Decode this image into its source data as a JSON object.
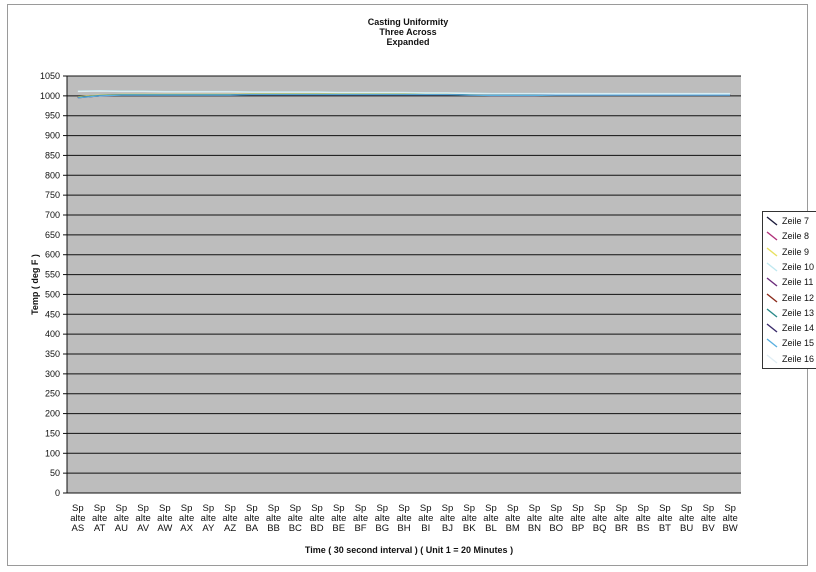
{
  "chart_data": {
    "type": "line",
    "title_lines": [
      "Casting Uniformity",
      "Three  Across",
      "Expanded"
    ],
    "xlabel": "Time ( 30 second interval ) ( Unit 1 = 20 Minutes )",
    "ylabel": "Temp ( deg F )",
    "ylim": [
      0,
      1050
    ],
    "yticks": [
      0,
      50,
      100,
      150,
      200,
      250,
      300,
      350,
      400,
      450,
      500,
      550,
      600,
      650,
      700,
      750,
      800,
      850,
      900,
      950,
      1000,
      1050
    ],
    "grid": true,
    "legend_position": "right",
    "categories": [
      {
        "line1": "Sp",
        "line2": "alte",
        "line3": "AS"
      },
      {
        "line1": "Sp",
        "line2": "alte",
        "line3": "AT"
      },
      {
        "line1": "Sp",
        "line2": "alte",
        "line3": "AU"
      },
      {
        "line1": "Sp",
        "line2": "alte",
        "line3": "AV"
      },
      {
        "line1": "Sp",
        "line2": "alte",
        "line3": "AW"
      },
      {
        "line1": "Sp",
        "line2": "alte",
        "line3": "AX"
      },
      {
        "line1": "Sp",
        "line2": "alte",
        "line3": "AY"
      },
      {
        "line1": "Sp",
        "line2": "alte",
        "line3": "AZ"
      },
      {
        "line1": "Sp",
        "line2": "alte",
        "line3": "BA"
      },
      {
        "line1": "Sp",
        "line2": "alte",
        "line3": "BB"
      },
      {
        "line1": "Sp",
        "line2": "alte",
        "line3": "BC"
      },
      {
        "line1": "Sp",
        "line2": "alte",
        "line3": "BD"
      },
      {
        "line1": "Sp",
        "line2": "alte",
        "line3": "BE"
      },
      {
        "line1": "Sp",
        "line2": "alte",
        "line3": "BF"
      },
      {
        "line1": "Sp",
        "line2": "alte",
        "line3": "BG"
      },
      {
        "line1": "Sp",
        "line2": "alte",
        "line3": "BH"
      },
      {
        "line1": "Sp",
        "line2": "alte",
        "line3": "BI"
      },
      {
        "line1": "Sp",
        "line2": "alte",
        "line3": "BJ"
      },
      {
        "line1": "Sp",
        "line2": "alte",
        "line3": "BK"
      },
      {
        "line1": "Sp",
        "line2": "alte",
        "line3": "BL"
      },
      {
        "line1": "Sp",
        "line2": "alte",
        "line3": "BM"
      },
      {
        "line1": "Sp",
        "line2": "alte",
        "line3": "BN"
      },
      {
        "line1": "Sp",
        "line2": "alte",
        "line3": "BO"
      },
      {
        "line1": "Sp",
        "line2": "alte",
        "line3": "BP"
      },
      {
        "line1": "Sp",
        "line2": "alte",
        "line3": "BQ"
      },
      {
        "line1": "Sp",
        "line2": "alte",
        "line3": "BR"
      },
      {
        "line1": "Sp",
        "line2": "alte",
        "line3": "BS"
      },
      {
        "line1": "Sp",
        "line2": "alte",
        "line3": "BT"
      },
      {
        "line1": "Sp",
        "line2": "alte",
        "line3": "BU"
      },
      {
        "line1": "Sp",
        "line2": "alte",
        "line3": "BV"
      },
      {
        "line1": "Sp",
        "line2": "alte",
        "line3": "BW"
      }
    ],
    "series": [
      {
        "name": "Zeile 7",
        "color": "#1a1a3a",
        "values": [
          996,
          1001,
          1003,
          1003,
          1003,
          1003,
          1003,
          1003,
          1004,
          1004,
          1004,
          1004,
          1004,
          1004,
          1004,
          1004,
          1004,
          1004,
          1003,
          1002,
          1002,
          1002,
          1003,
          1003,
          1003,
          1003,
          1003,
          1003,
          1003,
          1003,
          1003
        ]
      },
      {
        "name": "Zeile 8",
        "color": "#b0307a",
        "values": [
          997,
          1001,
          1003,
          1003,
          1003,
          1003,
          1003,
          1003,
          1004,
          1004,
          1004,
          1004,
          1004,
          1004,
          1004,
          1004,
          1004,
          1004,
          1003,
          1002,
          1002,
          1002,
          1003,
          1003,
          1003,
          1003,
          1003,
          1003,
          1003,
          1003,
          1003
        ]
      },
      {
        "name": "Zeile 9",
        "color": "#e8e060",
        "values": [
          998,
          1002,
          1004,
          1004,
          1004,
          1004,
          1004,
          1004,
          1005,
          1005,
          1005,
          1005,
          1005,
          1005,
          1005,
          1005,
          1005,
          1005,
          1004,
          1003,
          1003,
          1003,
          1004,
          1004,
          1004,
          1004,
          1004,
          1004,
          1004,
          1004,
          1004
        ]
      },
      {
        "name": "Zeile 10",
        "color": "#bfe8f0",
        "values": [
          1012,
          1013,
          1012,
          1012,
          1011,
          1011,
          1011,
          1011,
          1010,
          1010,
          1010,
          1010,
          1009,
          1009,
          1009,
          1009,
          1008,
          1008,
          1007,
          1006,
          1006,
          1006,
          1006,
          1006,
          1006,
          1006,
          1006,
          1006,
          1006,
          1006,
          1006
        ]
      },
      {
        "name": "Zeile 11",
        "color": "#6a2a7a",
        "values": [
          996,
          1000,
          1002,
          1002,
          1002,
          1002,
          1002,
          1002,
          1003,
          1003,
          1003,
          1003,
          1003,
          1003,
          1003,
          1003,
          1003,
          1003,
          1002,
          1001,
          1001,
          1001,
          1002,
          1002,
          1002,
          1002,
          1002,
          1002,
          1002,
          1002,
          1002
        ]
      },
      {
        "name": "Zeile 12",
        "color": "#8a2a1a",
        "values": [
          996,
          1000,
          1002,
          1002,
          1002,
          1002,
          1002,
          1002,
          1003,
          1003,
          1003,
          1003,
          1003,
          1003,
          1003,
          1003,
          1003,
          1003,
          1002,
          1001,
          1001,
          1001,
          1002,
          1002,
          1002,
          1002,
          1002,
          1002,
          1002,
          1002,
          1002
        ]
      },
      {
        "name": "Zeile 13",
        "color": "#2a8a8a",
        "values": [
          996,
          1001,
          1003,
          1003,
          1003,
          1003,
          1003,
          1003,
          1004,
          1004,
          1004,
          1004,
          1004,
          1004,
          1004,
          1004,
          1004,
          1004,
          1003,
          1002,
          1002,
          1002,
          1003,
          1003,
          1003,
          1003,
          1003,
          1003,
          1003,
          1003,
          1003
        ]
      },
      {
        "name": "Zeile 14",
        "color": "#3a2a6a",
        "values": [
          995,
          1000,
          1002,
          1002,
          1002,
          1002,
          1002,
          1002,
          1003,
          1003,
          1003,
          1003,
          1003,
          1003,
          1003,
          1003,
          1003,
          1003,
          1002,
          1001,
          1001,
          1001,
          1002,
          1002,
          1002,
          1002,
          1002,
          1002,
          1002,
          1002,
          1002
        ]
      },
      {
        "name": "Zeile 15",
        "color": "#5ab0e0",
        "values": [
          995,
          1000,
          1002,
          1002,
          1002,
          1002,
          1002,
          1002,
          1003,
          1003,
          1003,
          1003,
          1003,
          1003,
          1003,
          1003,
          1003,
          1003,
          1002,
          1001,
          1001,
          1001,
          1002,
          1002,
          1002,
          1002,
          1002,
          1002,
          1002,
          1002,
          1002
        ]
      },
      {
        "name": "Zeile 16",
        "color": "#e0eef4",
        "values": [
          1011,
          1012,
          1011,
          1011,
          1010,
          1010,
          1010,
          1010,
          1009,
          1009,
          1009,
          1009,
          1008,
          1008,
          1008,
          1008,
          1007,
          1007,
          1006,
          1005,
          1005,
          1005,
          1005,
          1005,
          1005,
          1005,
          1005,
          1005,
          1005,
          1005,
          1005
        ]
      }
    ]
  },
  "colors": {
    "plot_background": "#bdbdbd",
    "gridline": "#111111",
    "frame_border": "#9a9a9a"
  }
}
